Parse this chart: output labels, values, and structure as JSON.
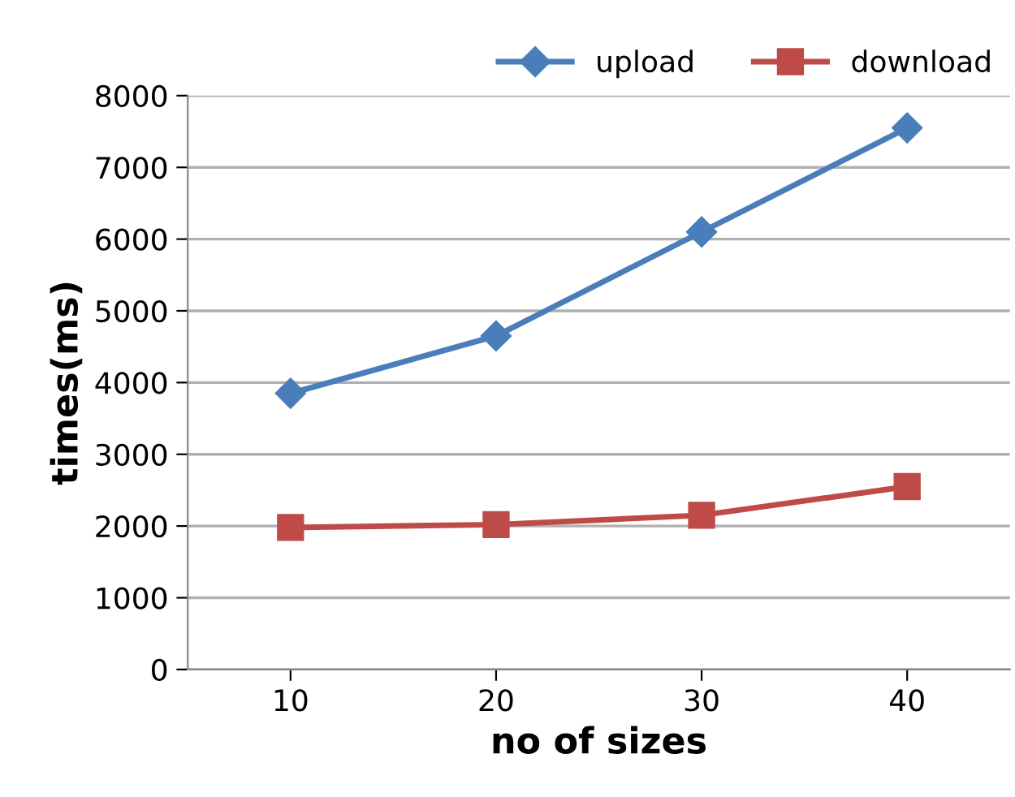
{
  "chart_data": {
    "type": "line",
    "xlabel": "no of sizes",
    "ylabel": "times(ms)",
    "categories": [
      "10",
      "20",
      "30",
      "40"
    ],
    "series": [
      {
        "name": "upload",
        "color": "#4a7ebb",
        "marker": "diamond",
        "values": [
          3850,
          4650,
          6100,
          7550
        ]
      },
      {
        "name": "download",
        "color": "#be4b48",
        "marker": "square",
        "values": [
          1980,
          2020,
          2150,
          2550
        ]
      }
    ],
    "ylim": [
      0,
      8000
    ],
    "yticks": [
      0,
      1000,
      2000,
      3000,
      4000,
      5000,
      6000,
      7000,
      8000
    ],
    "grid": "y",
    "legend": "top right",
    "line_style": "solid"
  }
}
